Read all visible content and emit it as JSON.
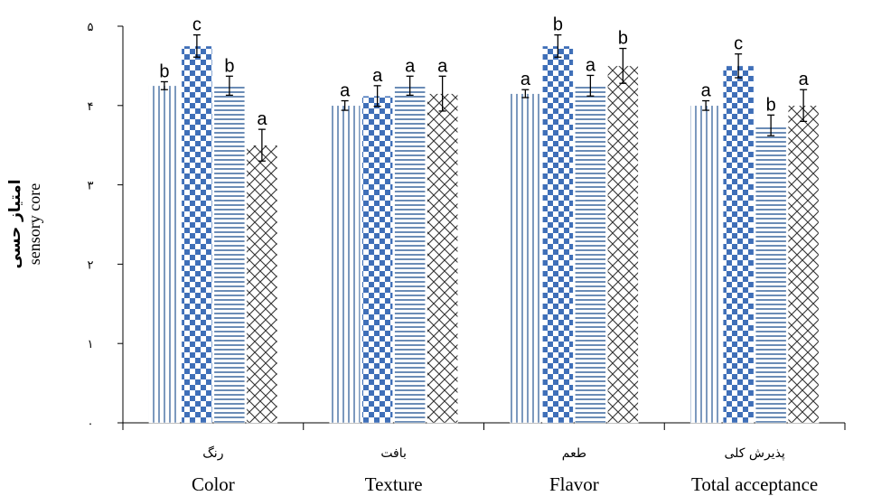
{
  "chart_data": {
    "type": "bar",
    "ylabel_fa": "امتیاز حسی",
    "ylabel_en": "sensory core",
    "ylim": [
      0,
      5
    ],
    "yticks": [
      "۰",
      "۱",
      "۲",
      "۳",
      "۴",
      "۵"
    ],
    "grid": false,
    "categories": [
      {
        "fa": "رنگ",
        "en": "Color"
      },
      {
        "fa": "بافت",
        "en": "Texture"
      },
      {
        "fa": "طعم",
        "en": "Flavor"
      },
      {
        "fa": "پذیرش کلی",
        "en": "Total acceptance"
      }
    ],
    "series": [
      {
        "pattern": "vertical-lines",
        "values": [
          4.25,
          4.0,
          4.15,
          4.0
        ],
        "errors": [
          0.05,
          0.06,
          0.05,
          0.06
        ],
        "labels": [
          "b",
          "a",
          "a",
          "a"
        ]
      },
      {
        "pattern": "checker",
        "values": [
          4.75,
          4.12,
          4.75,
          4.5
        ],
        "errors": [
          0.14,
          0.13,
          0.14,
          0.15
        ],
        "labels": [
          "c",
          "a",
          "b",
          "c"
        ]
      },
      {
        "pattern": "horizontal-lines",
        "values": [
          4.25,
          4.25,
          4.25,
          3.75
        ],
        "errors": [
          0.12,
          0.12,
          0.13,
          0.13
        ],
        "labels": [
          "b",
          "a",
          "a",
          "b"
        ]
      },
      {
        "pattern": "crosshatch",
        "values": [
          3.5,
          4.15,
          4.5,
          4.0
        ],
        "errors": [
          0.2,
          0.22,
          0.22,
          0.2
        ],
        "labels": [
          "a",
          "a",
          "b",
          "a"
        ]
      }
    ]
  }
}
